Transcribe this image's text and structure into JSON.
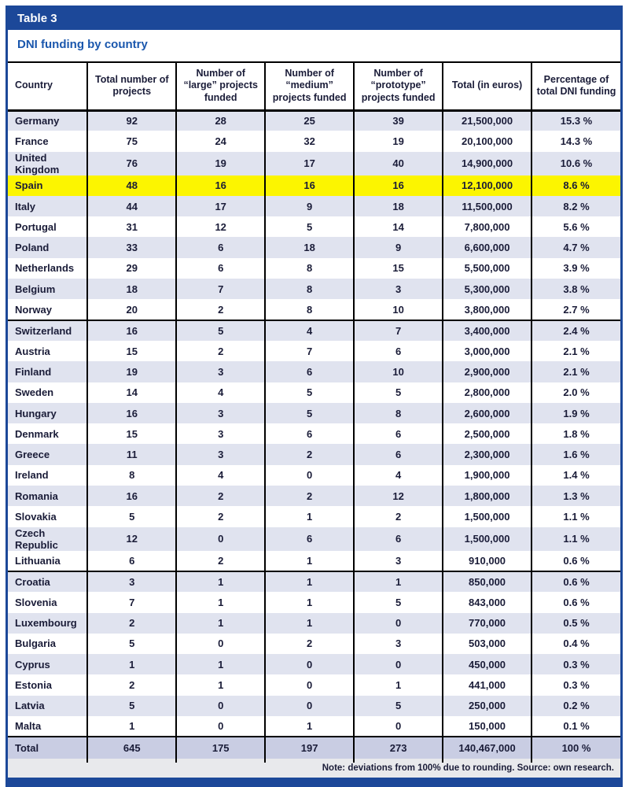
{
  "colors": {
    "navy": "#1c4899",
    "subtitle_blue": "#1a57ad",
    "row_light": "#e0e3ef",
    "total_row": "#c9cde3",
    "highlight_yellow": "#fcf500",
    "note_bg": "#e8e9ec",
    "text_dark": "#1a1c38",
    "border_black": "#000000"
  },
  "figure": {
    "table_label": "Table 3",
    "title": "DNI funding by country",
    "note": "Note: deviations from 100% due to rounding. Source: own research."
  },
  "table": {
    "highlight_country": "Spain",
    "separator_before": [
      "Switzerland",
      "Croatia"
    ]
  },
  "chart_data": {
    "type": "table",
    "title": "DNI funding by country",
    "columns": [
      "Country",
      "Total number of projects",
      "Number of “large” projects funded",
      "Number of “medium” projects funded",
      "Number of “prototype” projects funded",
      "Total (in euros)",
      "Percentage of total DNI funding"
    ],
    "rows": [
      [
        "Germany",
        92,
        28,
        25,
        39,
        21500000,
        "15.3 %"
      ],
      [
        "France",
        75,
        24,
        32,
        19,
        20100000,
        "14.3 %"
      ],
      [
        "United Kingdom",
        76,
        19,
        17,
        40,
        14900000,
        "10.6 %"
      ],
      [
        "Spain",
        48,
        16,
        16,
        16,
        12100000,
        "8.6 %"
      ],
      [
        "Italy",
        44,
        17,
        9,
        18,
        11500000,
        "8.2 %"
      ],
      [
        "Portugal",
        31,
        12,
        5,
        14,
        7800000,
        "5.6 %"
      ],
      [
        "Poland",
        33,
        6,
        18,
        9,
        6600000,
        "4.7 %"
      ],
      [
        "Netherlands",
        29,
        6,
        8,
        15,
        5500000,
        "3.9 %"
      ],
      [
        "Belgium",
        18,
        7,
        8,
        3,
        5300000,
        "3.8 %"
      ],
      [
        "Norway",
        20,
        2,
        8,
        10,
        3800000,
        "2.7 %"
      ],
      [
        "Switzerland",
        16,
        5,
        4,
        7,
        3400000,
        "2.4 %"
      ],
      [
        "Austria",
        15,
        2,
        7,
        6,
        3000000,
        "2.1 %"
      ],
      [
        "Finland",
        19,
        3,
        6,
        10,
        2900000,
        "2.1 %"
      ],
      [
        "Sweden",
        14,
        4,
        5,
        5,
        2800000,
        "2.0 %"
      ],
      [
        "Hungary",
        16,
        3,
        5,
        8,
        2600000,
        "1.9 %"
      ],
      [
        "Denmark",
        15,
        3,
        6,
        6,
        2500000,
        "1.8 %"
      ],
      [
        "Greece",
        11,
        3,
        2,
        6,
        2300000,
        "1.6 %"
      ],
      [
        "Ireland",
        8,
        4,
        0,
        4,
        1900000,
        "1.4 %"
      ],
      [
        "Romania",
        16,
        2,
        2,
        12,
        1800000,
        "1.3 %"
      ],
      [
        "Slovakia",
        5,
        2,
        1,
        2,
        1500000,
        "1.1 %"
      ],
      [
        "Czech Republic",
        12,
        0,
        6,
        6,
        1500000,
        "1.1 %"
      ],
      [
        "Lithuania",
        6,
        2,
        1,
        3,
        910000,
        "0.6 %"
      ],
      [
        "Croatia",
        3,
        1,
        1,
        1,
        850000,
        "0.6 %"
      ],
      [
        "Slovenia",
        7,
        1,
        1,
        5,
        843000,
        "0.6 %"
      ],
      [
        "Luxembourg",
        2,
        1,
        1,
        0,
        770000,
        "0.5 %"
      ],
      [
        "Bulgaria",
        5,
        0,
        2,
        3,
        503000,
        "0.4 %"
      ],
      [
        "Cyprus",
        1,
        1,
        0,
        0,
        450000,
        "0.3 %"
      ],
      [
        "Estonia",
        2,
        1,
        0,
        1,
        441000,
        "0.3 %"
      ],
      [
        "Latvia",
        5,
        0,
        0,
        5,
        250000,
        "0.2 %"
      ],
      [
        "Malta",
        1,
        0,
        1,
        0,
        150000,
        "0.1 %"
      ]
    ],
    "total_row": [
      "Total",
      645,
      175,
      197,
      273,
      140467000,
      "100 %"
    ]
  }
}
